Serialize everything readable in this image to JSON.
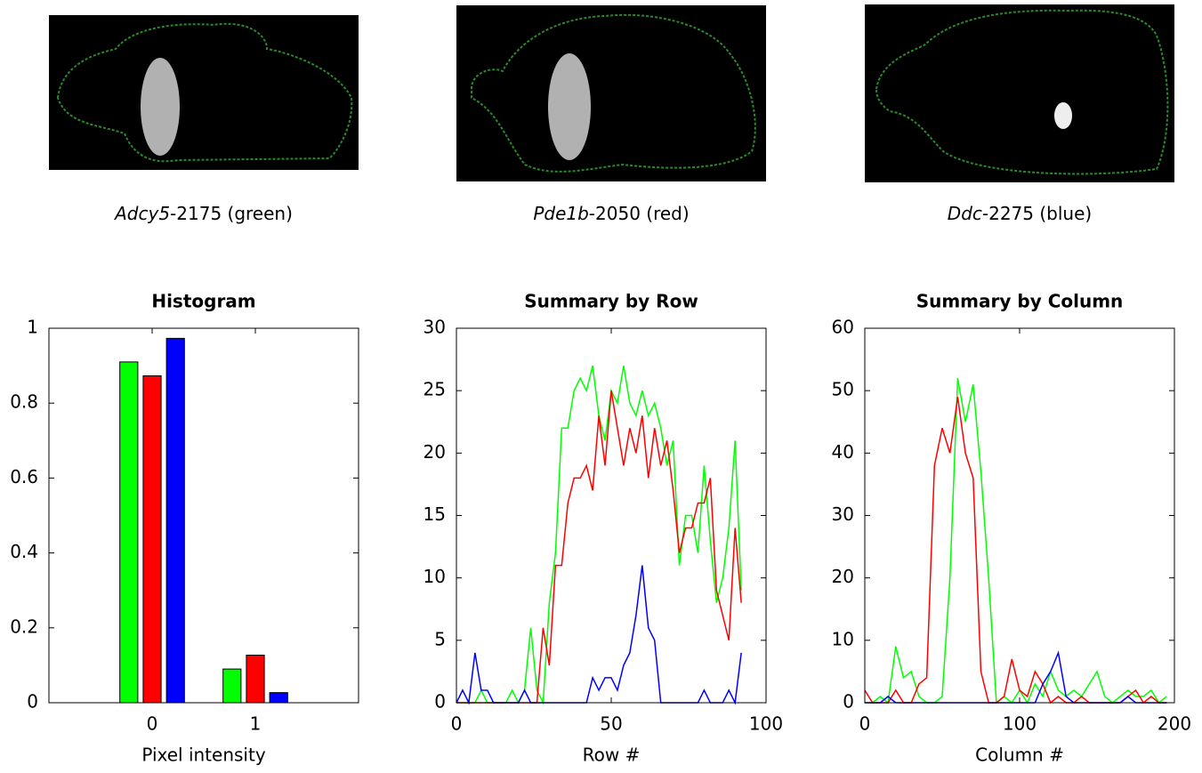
{
  "images": [
    {
      "gene": "Adcy5",
      "suffix": "-2175 (green)"
    },
    {
      "gene": "Pde1b",
      "suffix": "-2050 (red)"
    },
    {
      "gene": "Ddc",
      "suffix": "-2275 (blue)"
    }
  ],
  "chart_data": [
    {
      "type": "bar",
      "title": "Histogram",
      "x_label": "Pixel intensity",
      "x": [
        0,
        1
      ],
      "xlim": [
        -1,
        2
      ],
      "xticks": [
        0,
        1
      ],
      "ylim": [
        0,
        1
      ],
      "yticks": [
        0,
        0.2,
        0.4,
        0.6,
        0.8,
        1
      ],
      "series": [
        {
          "color": "#00ff00",
          "values": [
            0.91,
            0.09
          ]
        },
        {
          "color": "#ff0000",
          "values": [
            0.873,
            0.127
          ]
        },
        {
          "color": "#0000ff",
          "values": [
            0.973,
            0.027
          ]
        }
      ]
    },
    {
      "type": "line",
      "title": "Summary by Row",
      "x_label": "Row #",
      "x": [
        0,
        2,
        4,
        6,
        8,
        10,
        12,
        14,
        16,
        18,
        20,
        22,
        24,
        26,
        28,
        30,
        32,
        34,
        36,
        38,
        40,
        42,
        44,
        46,
        48,
        50,
        52,
        54,
        56,
        58,
        60,
        62,
        64,
        66,
        68,
        70,
        72,
        74,
        76,
        78,
        80,
        82,
        84,
        86,
        88,
        90,
        92
      ],
      "xlim": [
        0,
        100
      ],
      "xticks": [
        0,
        50,
        100
      ],
      "ylim": [
        0,
        30
      ],
      "yticks": [
        0,
        5,
        10,
        15,
        20,
        25,
        30
      ],
      "series": [
        {
          "color": "#00ff00",
          "values": [
            0,
            0,
            0,
            0,
            1,
            0,
            0,
            0,
            0,
            1,
            0,
            1,
            6,
            1,
            0,
            8,
            12,
            22,
            22,
            25,
            26,
            25,
            27,
            23,
            21,
            25,
            24,
            27,
            24,
            23,
            25,
            23,
            24,
            22,
            19,
            21,
            11,
            15,
            15,
            12,
            19,
            13,
            8,
            10,
            14,
            21,
            9
          ]
        },
        {
          "color": "#ff0000",
          "values": [
            0,
            0,
            0,
            0,
            0,
            0,
            0,
            0,
            0,
            0,
            0,
            0,
            0,
            0,
            6,
            3,
            11,
            11,
            16,
            18,
            18,
            19,
            17,
            23,
            19,
            25,
            22,
            19,
            22,
            20,
            23,
            18,
            22,
            19,
            21,
            17,
            12,
            14,
            14,
            16,
            16,
            18,
            9,
            7,
            5,
            14,
            8
          ]
        },
        {
          "color": "#0000ff",
          "values": [
            0,
            1,
            0,
            4,
            1,
            1,
            0,
            0,
            0,
            0,
            0,
            1,
            0,
            0,
            0,
            0,
            0,
            0,
            0,
            0,
            0,
            0,
            2,
            1,
            2,
            2,
            1,
            3,
            4,
            7,
            11,
            6,
            5,
            0,
            0,
            0,
            0,
            0,
            0,
            0,
            1,
            0,
            0,
            0,
            1,
            0,
            4
          ]
        }
      ]
    },
    {
      "type": "line",
      "title": "Summary by Column",
      "x_label": "Column #",
      "x": [
        0,
        5,
        10,
        15,
        20,
        25,
        30,
        35,
        40,
        45,
        50,
        55,
        60,
        65,
        70,
        75,
        80,
        85,
        90,
        95,
        100,
        105,
        110,
        115,
        120,
        125,
        130,
        135,
        140,
        145,
        150,
        155,
        160,
        165,
        170,
        175,
        180,
        185,
        190,
        195
      ],
      "xlim": [
        0,
        200
      ],
      "xticks": [
        0,
        100,
        200
      ],
      "ylim": [
        0,
        60
      ],
      "yticks": [
        0,
        10,
        20,
        30,
        40,
        50,
        60
      ],
      "series": [
        {
          "color": "#00ff00",
          "values": [
            0,
            0,
            1,
            0,
            9,
            4,
            5,
            1,
            0,
            0,
            1,
            20,
            52,
            45,
            51,
            37,
            20,
            0,
            1,
            0,
            2,
            0,
            3,
            1,
            5,
            2,
            1,
            2,
            1,
            3,
            5,
            1,
            0,
            1,
            2,
            1,
            1,
            2,
            0,
            1
          ]
        },
        {
          "color": "#ff0000",
          "values": [
            2,
            0,
            0,
            0,
            2,
            0,
            0,
            3,
            4,
            38,
            44,
            40,
            49,
            40,
            36,
            5,
            0,
            0,
            1,
            7,
            2,
            1,
            5,
            3,
            0,
            1,
            0,
            0,
            1,
            0,
            0,
            0,
            0,
            0,
            1,
            2,
            0,
            1,
            0,
            0
          ]
        },
        {
          "color": "#0000ff",
          "values": [
            0,
            0,
            0,
            1,
            0,
            0,
            0,
            0,
            0,
            0,
            0,
            0,
            0,
            0,
            0,
            0,
            0,
            0,
            0,
            0,
            0,
            0,
            0,
            3,
            5,
            8,
            1,
            0,
            0,
            0,
            0,
            0,
            0,
            0,
            1,
            0,
            0,
            0,
            0,
            0
          ]
        }
      ]
    }
  ]
}
